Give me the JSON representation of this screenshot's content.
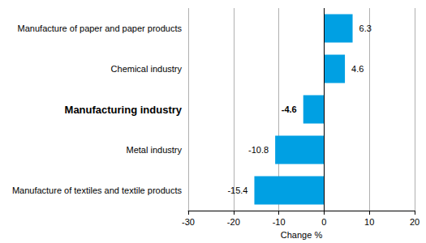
{
  "chart_data": {
    "type": "bar",
    "orientation": "horizontal",
    "categories": [
      "Manufacture of paper and paper products",
      "Chemical industry",
      "Manufacturing industry",
      "Metal industry",
      "Manufacture of textiles and textile products"
    ],
    "values": [
      6.3,
      4.6,
      -4.6,
      -10.8,
      -15.4
    ],
    "color": "#00a0e3",
    "x_label": "Change %",
    "xlim": [
      -30,
      20
    ],
    "xticks": [
      -30,
      -20,
      -10,
      0,
      10,
      20
    ],
    "grid": true,
    "data_labels": true
  }
}
